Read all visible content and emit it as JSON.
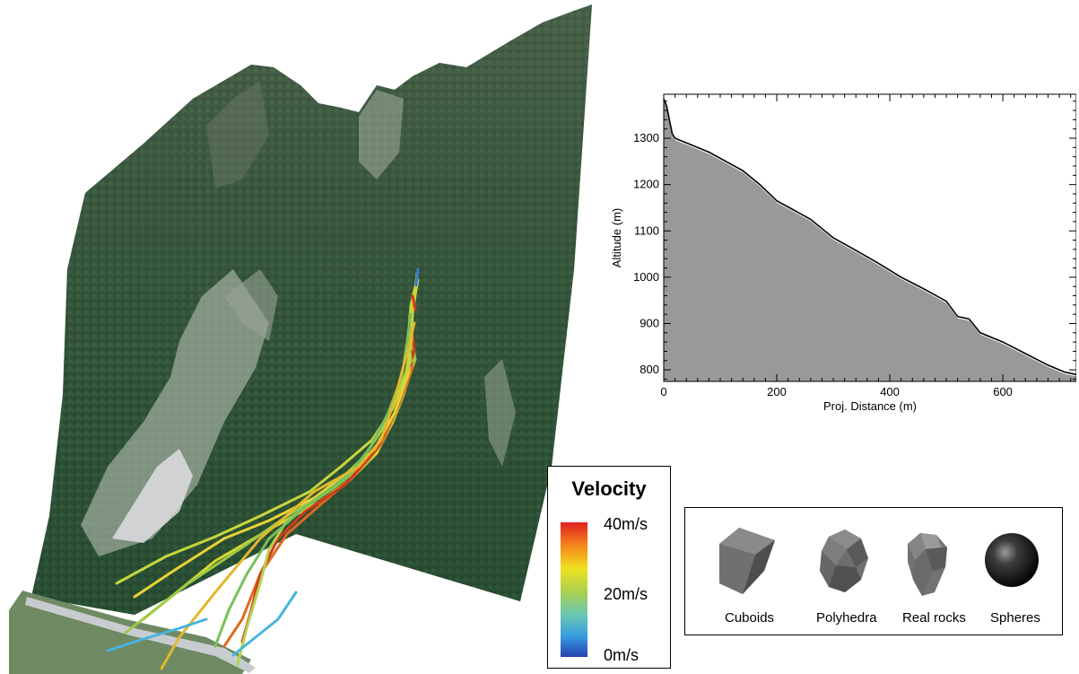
{
  "legend": {
    "title": "Velocity",
    "labels": [
      "40m/s",
      "20m/s",
      "0m/s"
    ]
  },
  "rock_shapes": {
    "labels": [
      "Cuboids",
      "Polyhedra",
      "Real rocks",
      "Spheres"
    ]
  },
  "chart_data": {
    "type": "area",
    "xlabel": "Proj. Distance (m)",
    "ylabel": "Altitude (m)",
    "xlim": [
      0,
      730
    ],
    "ylim": [
      775,
      1395
    ],
    "xticks": [
      0,
      200,
      400,
      600
    ],
    "yticks": [
      800,
      900,
      1000,
      1100,
      1200,
      1300
    ],
    "series": [
      {
        "x": [
          0,
          5,
          10,
          15,
          20,
          30,
          50,
          80,
          110,
          140,
          170,
          200,
          230,
          260,
          300,
          340,
          380,
          420,
          460,
          500,
          520,
          540,
          560,
          600,
          640,
          680,
          710,
          730
        ],
        "y": [
          1385,
          1370,
          1340,
          1310,
          1300,
          1295,
          1285,
          1270,
          1250,
          1230,
          1200,
          1165,
          1145,
          1125,
          1085,
          1058,
          1030,
          1000,
          975,
          948,
          915,
          910,
          880,
          860,
          835,
          810,
          795,
          790
        ]
      }
    ]
  }
}
